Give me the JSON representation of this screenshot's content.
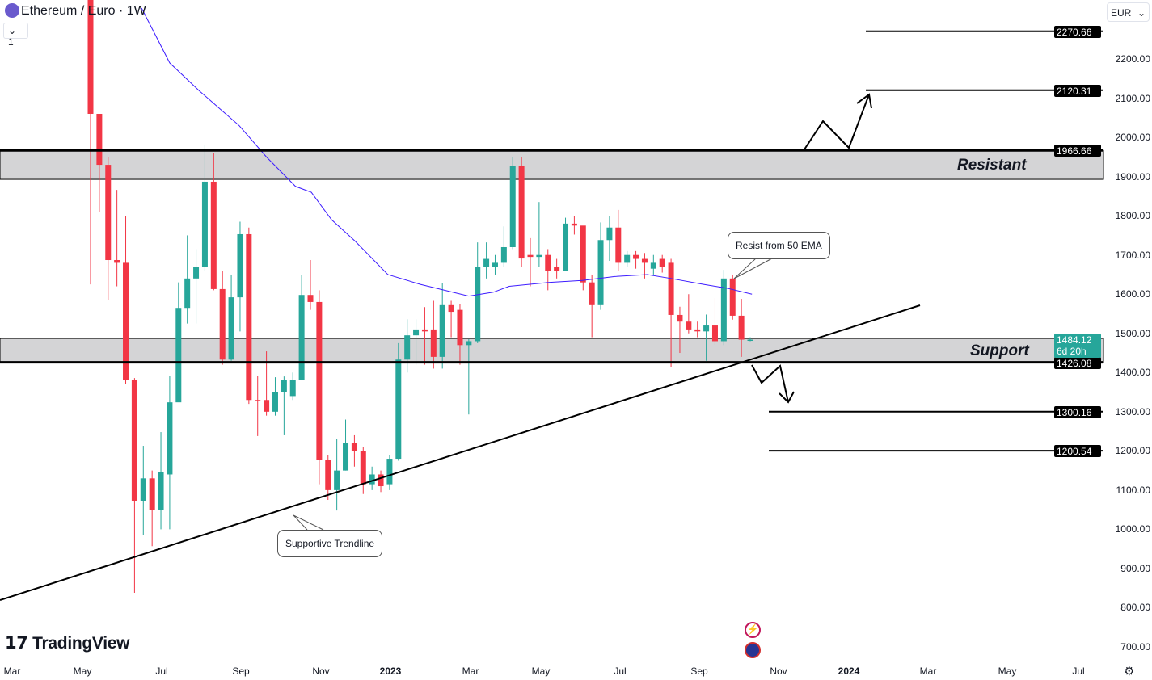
{
  "header": {
    "title": "Ethereum / Euro · 1W",
    "interval_toggle": "1",
    "currency": "EUR"
  },
  "brand": "TradingView",
  "colors": {
    "up": "#26a69a",
    "down": "#f23645",
    "ema": "#3d1cff",
    "zone": "#d4d4d6"
  },
  "chart_data": {
    "type": "candlestick",
    "ylim": [
      650,
      2330
    ],
    "y_ticks": [
      2200,
      2100,
      2000,
      1900,
      1800,
      1700,
      1600,
      1500,
      1400,
      1300,
      1200,
      1100,
      1000,
      900,
      800,
      700
    ],
    "y_tick_labels": [
      "2200.00",
      "2100.00",
      "2000.00",
      "1900.00",
      "1800.00",
      "1700.00",
      "1600.00",
      "1500.00",
      "1400.00",
      "1300.00",
      "1200.00",
      "1100.00",
      "1000.00",
      "900.00",
      "800.00",
      "700.00"
    ],
    "x_ticks": [
      "Mar",
      "May",
      "Jul",
      "Sep",
      "Nov",
      "2023",
      "Mar",
      "May",
      "Jul",
      "Sep",
      "Nov",
      "2024",
      "Mar",
      "May",
      "Jul"
    ],
    "candles": [
      [
        2800,
        2060,
        2800,
        1625
      ],
      [
        2060,
        1930,
        2060,
        1810
      ],
      [
        1930,
        1687,
        1950,
        1585
      ],
      [
        1687,
        1680,
        1866,
        1620
      ],
      [
        1680,
        1380,
        1800,
        1370
      ],
      [
        1380,
        1073,
        1386,
        838
      ],
      [
        1073,
        1130,
        1213,
        985
      ],
      [
        1130,
        1050,
        1150,
        957
      ],
      [
        1050,
        1147,
        1248,
        1000
      ],
      [
        1140,
        1324,
        1392,
        1000
      ],
      [
        1324,
        1565,
        1630,
        1330
      ],
      [
        1565,
        1640,
        1750,
        1525
      ],
      [
        1640,
        1670,
        1715,
        1525
      ],
      [
        1670,
        1887,
        1980,
        1660
      ],
      [
        1887,
        1613,
        1960,
        1610
      ],
      [
        1613,
        1433,
        1660,
        1420
      ],
      [
        1433,
        1592,
        1650,
        1430
      ],
      [
        1592,
        1753,
        1785,
        1505
      ],
      [
        1753,
        1330,
        1770,
        1320
      ],
      [
        1330,
        1327,
        1392,
        1238
      ],
      [
        1330,
        1300,
        1454,
        1290
      ],
      [
        1300,
        1350,
        1388,
        1290
      ],
      [
        1350,
        1382,
        1390,
        1240
      ],
      [
        1340,
        1380,
        1400,
        1330
      ],
      [
        1380,
        1598,
        1650,
        1380
      ],
      [
        1598,
        1580,
        1687,
        1560
      ],
      [
        1580,
        1176,
        1610,
        1115
      ],
      [
        1176,
        1100,
        1190,
        1075
      ],
      [
        1100,
        1150,
        1230,
        1048
      ],
      [
        1150,
        1220,
        1280,
        1150
      ],
      [
        1220,
        1200,
        1240,
        1160
      ],
      [
        1200,
        1115,
        1210,
        1090
      ],
      [
        1115,
        1140,
        1160,
        1100
      ],
      [
        1140,
        1110,
        1150,
        1095
      ],
      [
        1115,
        1180,
        1190,
        1100
      ],
      [
        1180,
        1433,
        1475,
        1175
      ],
      [
        1433,
        1495,
        1536,
        1400
      ],
      [
        1495,
        1510,
        1536,
        1420
      ],
      [
        1510,
        1505,
        1567,
        1420
      ],
      [
        1510,
        1440,
        1583,
        1410
      ],
      [
        1440,
        1572,
        1629,
        1410
      ],
      [
        1572,
        1555,
        1583,
        1490
      ],
      [
        1560,
        1470,
        1575,
        1420
      ],
      [
        1470,
        1480,
        1485,
        1293
      ],
      [
        1480,
        1670,
        1732,
        1475
      ],
      [
        1670,
        1690,
        1732,
        1640
      ],
      [
        1670,
        1680,
        1700,
        1650
      ],
      [
        1680,
        1720,
        1773,
        1670
      ],
      [
        1720,
        1928,
        1950,
        1715
      ],
      [
        1928,
        1691,
        1950,
        1670
      ],
      [
        1700,
        1695,
        1743,
        1620
      ],
      [
        1695,
        1700,
        1835,
        1670
      ],
      [
        1700,
        1660,
        1715,
        1610
      ],
      [
        1670,
        1660,
        1690,
        1640
      ],
      [
        1660,
        1780,
        1795,
        1670
      ],
      [
        1780,
        1775,
        1800,
        1752
      ],
      [
        1775,
        1630,
        1765,
        1610
      ],
      [
        1630,
        1572,
        1650,
        1490
      ],
      [
        1572,
        1738,
        1783,
        1560
      ],
      [
        1738,
        1770,
        1800,
        1685
      ],
      [
        1770,
        1680,
        1815,
        1660
      ],
      [
        1680,
        1700,
        1710,
        1670
      ],
      [
        1700,
        1690,
        1710,
        1665
      ],
      [
        1690,
        1680,
        1705,
        1640
      ],
      [
        1665,
        1680,
        1700,
        1650
      ],
      [
        1690,
        1670,
        1700,
        1655
      ],
      [
        1680,
        1547,
        1690,
        1413
      ],
      [
        1547,
        1530,
        1568,
        1450
      ],
      [
        1530,
        1510,
        1600,
        1500
      ],
      [
        1510,
        1505,
        1530,
        1490
      ],
      [
        1505,
        1520,
        1548,
        1430
      ],
      [
        1520,
        1480,
        1590,
        1470
      ],
      [
        1480,
        1640,
        1662,
        1470
      ],
      [
        1640,
        1545,
        1650,
        1535
      ],
      [
        1545,
        1484,
        1588,
        1440
      ],
      [
        1484,
        1484,
        1490,
        1480
      ]
    ],
    "ema50": [
      [
        5.8,
        2330
      ],
      [
        9,
        2190
      ],
      [
        12.3,
        2120
      ],
      [
        14.6,
        2075
      ],
      [
        16.9,
        2030
      ],
      [
        20,
        1950
      ],
      [
        23.3,
        1875
      ],
      [
        25.1,
        1860
      ],
      [
        27.4,
        1790
      ],
      [
        30.1,
        1735
      ],
      [
        33.8,
        1650
      ],
      [
        37.5,
        1625
      ],
      [
        43,
        1595
      ],
      [
        45.8,
        1605
      ],
      [
        47.6,
        1620
      ],
      [
        52.2,
        1630
      ],
      [
        55.9,
        1635
      ],
      [
        59.6,
        1645
      ],
      [
        63.3,
        1650
      ],
      [
        66,
        1640
      ],
      [
        69.7,
        1625
      ],
      [
        72.4,
        1615
      ],
      [
        75.2,
        1600
      ]
    ],
    "levels": [
      2270.66,
      2120.31,
      1966.66,
      1426.08,
      1300.16,
      1200.54
    ],
    "level_labels": [
      "2270.66",
      "2120.31",
      "1966.66",
      "1426.08",
      "1300.16",
      "1200.54"
    ],
    "current_price": "1484.12",
    "countdown": "6d 20h",
    "resistance_zone": [
      1893,
      1966.66
    ],
    "support_zone": [
      1426.08,
      1487
    ],
    "annotations": {
      "resistant": "Resistant",
      "support": "Support",
      "ema_callout": "Resist from 50 EMA",
      "trend_callout": "Supportive Trendline"
    }
  }
}
